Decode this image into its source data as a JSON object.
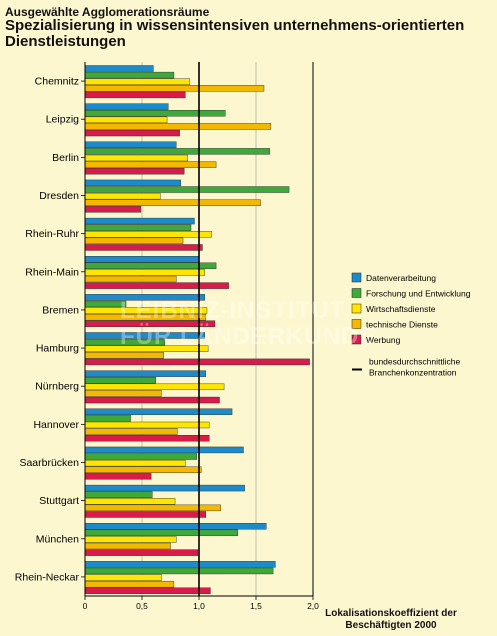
{
  "header": {
    "supertitle": "Ausgewählte Agglomerationsräume",
    "title": "Spezialisierung in wissensintensiven unternehmens-orientierten Dienstleistungen"
  },
  "watermark": {
    "line1": "LEIBNIZ-INSTITUT",
    "line2": "FÜR LÄNDERKUNDE"
  },
  "colors": {
    "Datenverarbeitung": "#1d8bc9",
    "Forschung und Entwicklung": "#3fa83a",
    "Wirtschaftsdienste": "#ffe600",
    "technische Dienste": "#f5b800",
    "Werbung": "#d81b4a",
    "background": "#fdf7cf"
  },
  "chart_data": {
    "type": "bar",
    "orientation": "horizontal",
    "categories": [
      "Chemnitz",
      "Leipzig",
      "Berlin",
      "Dresden",
      "Rhein-Ruhr",
      "Rhein-Main",
      "Bremen",
      "Hamburg",
      "Nürnberg",
      "Hannover",
      "Saarbrücken",
      "Stuttgart",
      "München",
      "Rhein-Neckar"
    ],
    "series": [
      {
        "name": "Datenverarbeitung",
        "values": [
          0.6,
          0.73,
          0.8,
          0.84,
          0.96,
          1.0,
          1.05,
          1.05,
          1.06,
          1.29,
          1.39,
          1.4,
          1.59,
          1.67
        ]
      },
      {
        "name": "Forschung und Entwicklung",
        "values": [
          0.78,
          1.23,
          1.62,
          1.79,
          0.93,
          1.15,
          0.36,
          0.7,
          0.62,
          0.4,
          0.98,
          0.59,
          1.34,
          1.65
        ]
      },
      {
        "name": "Wirtschaftsdienste",
        "values": [
          0.92,
          0.72,
          0.9,
          0.66,
          1.11,
          1.05,
          1.07,
          1.08,
          1.22,
          1.09,
          0.88,
          0.79,
          0.8,
          0.67
        ]
      },
      {
        "name": "technische Dienste",
        "values": [
          1.57,
          1.63,
          1.15,
          1.54,
          0.86,
          0.8,
          1.06,
          0.69,
          0.67,
          0.81,
          1.02,
          1.19,
          0.75,
          0.78
        ]
      },
      {
        "name": "Werbung",
        "values": [
          0.88,
          0.83,
          0.87,
          0.49,
          1.03,
          1.26,
          1.14,
          1.97,
          1.18,
          1.09,
          0.58,
          1.06,
          0.99,
          1.1
        ]
      }
    ],
    "reference": {
      "value": 1.0,
      "label": "bundesdurchschnittliche Branchenkonzentration"
    },
    "xticks": [
      "0",
      "0,5",
      "1,0",
      "1,5",
      "2,0"
    ],
    "xlim": [
      0,
      2.0
    ],
    "xlabel": "Lokalisationskoeffizient der Beschäftigten 2000",
    "legend_position": "right"
  }
}
